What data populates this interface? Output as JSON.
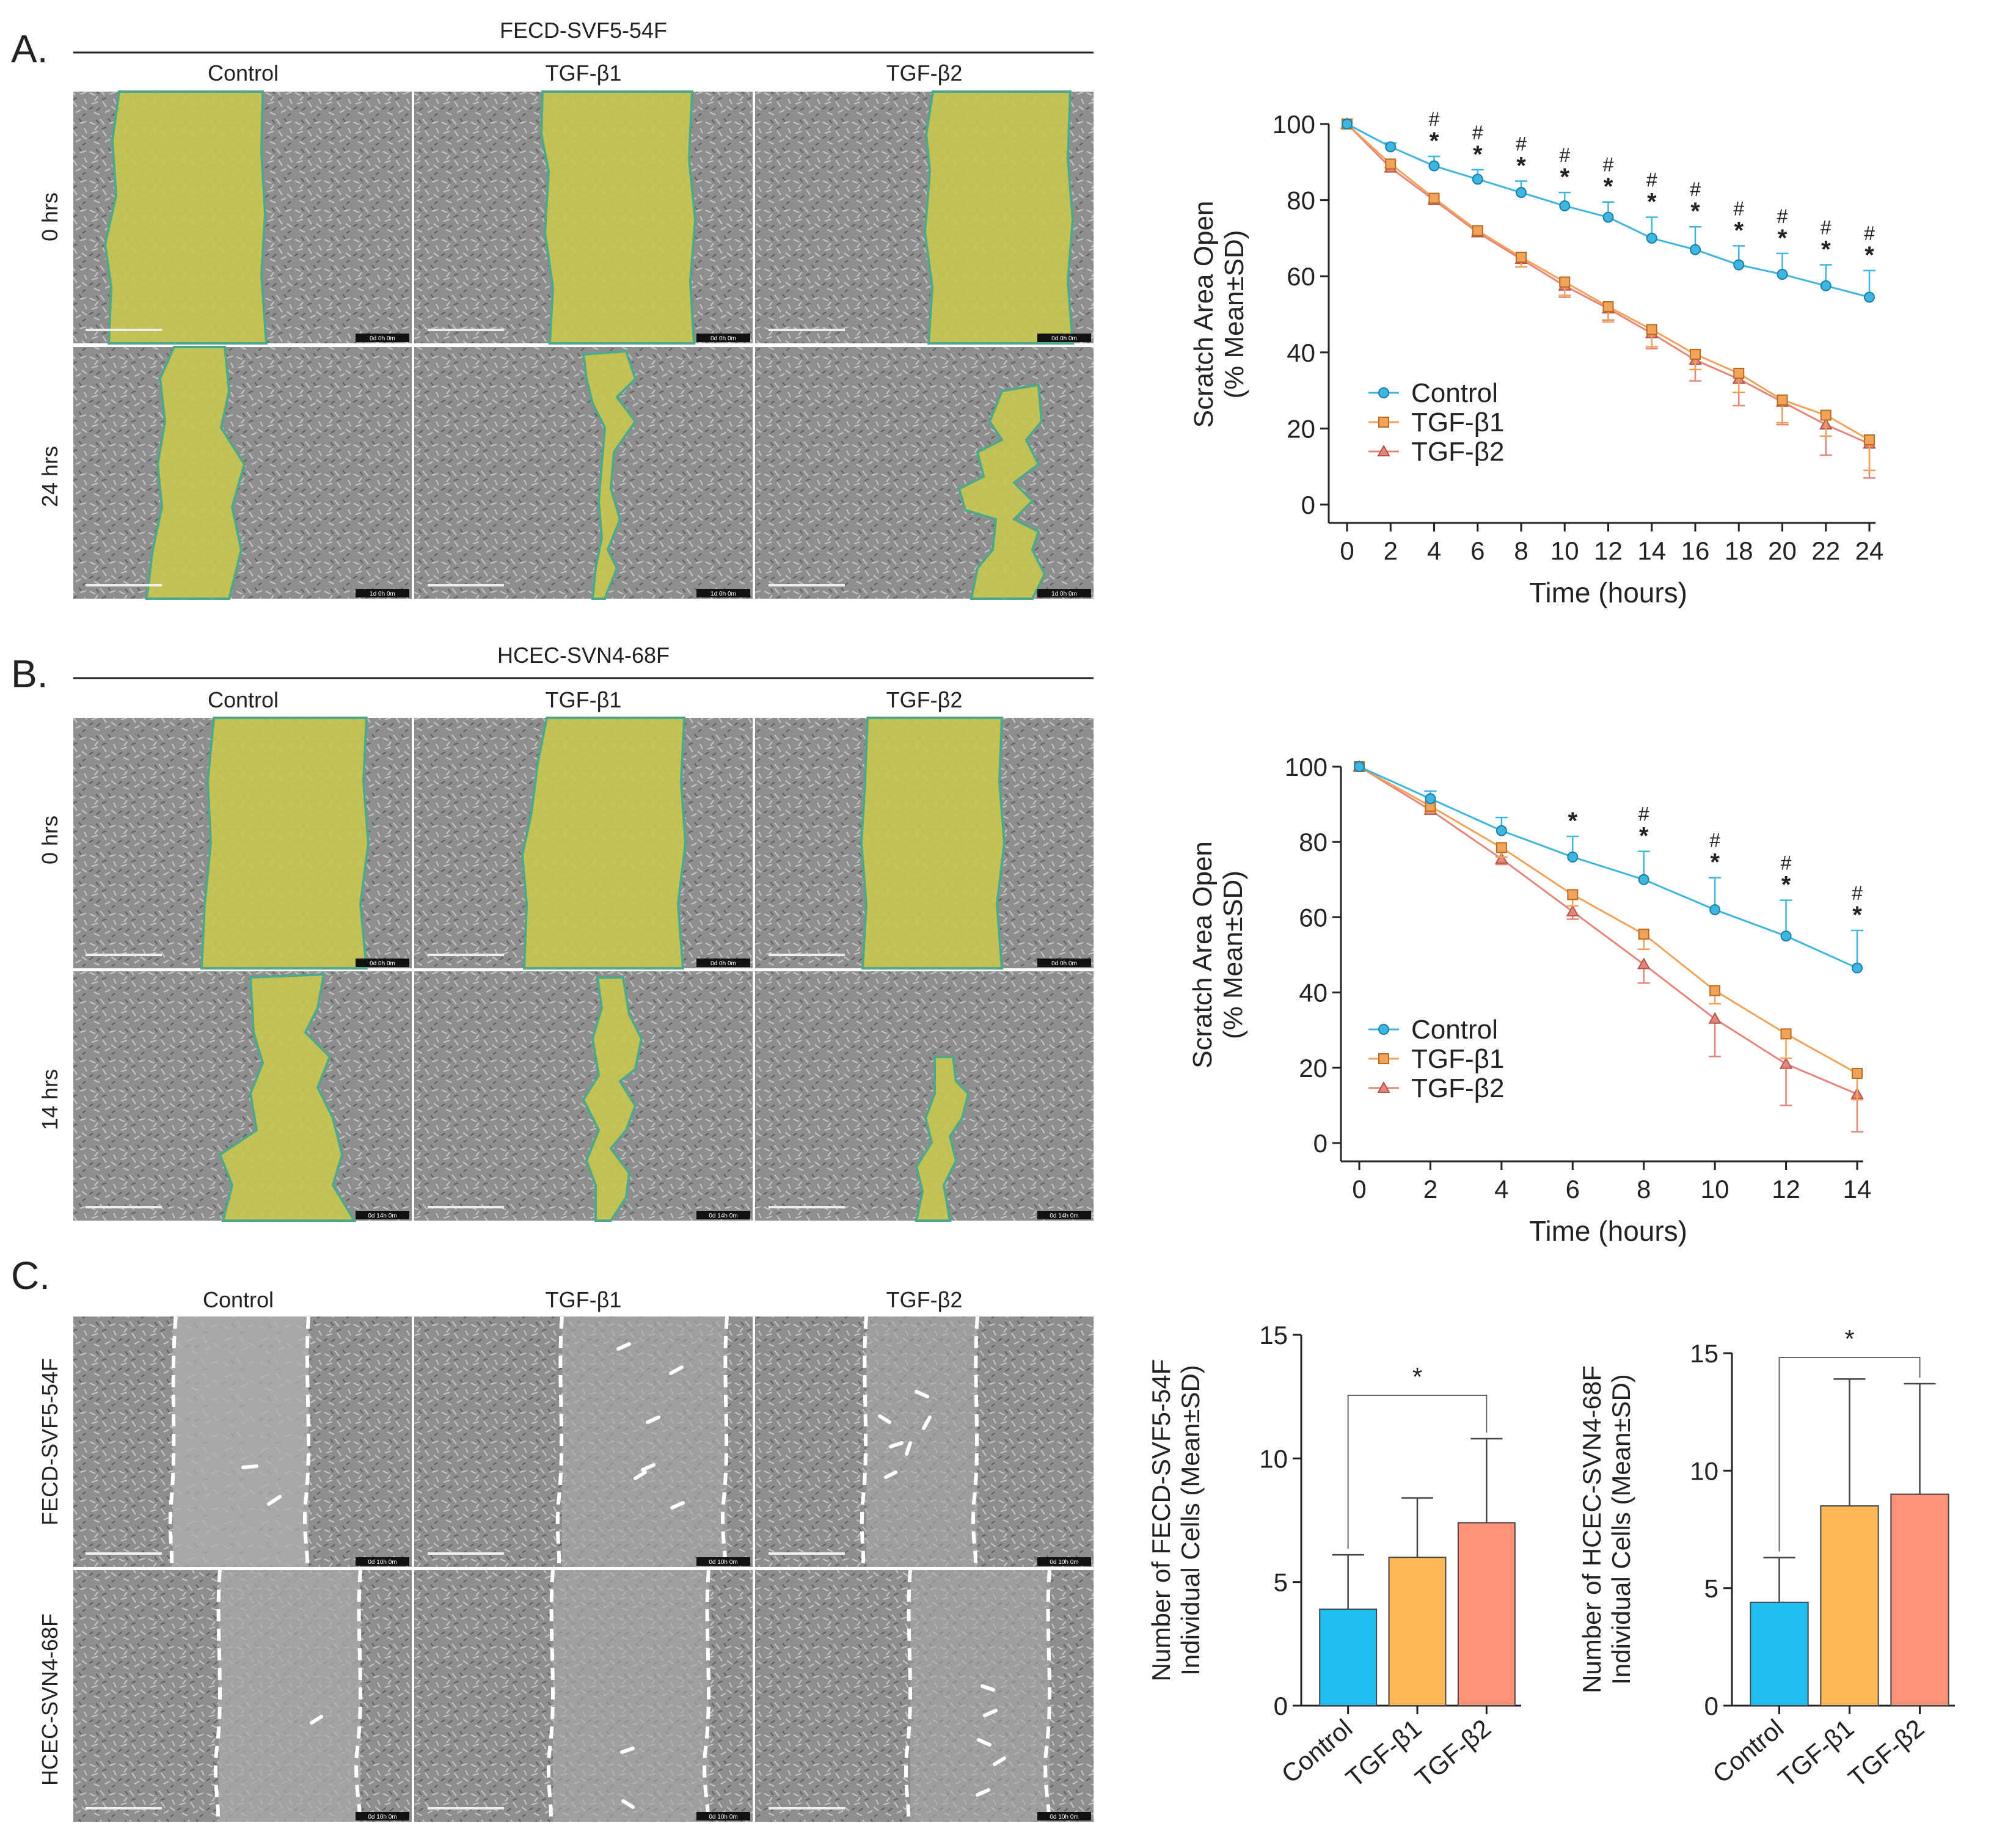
{
  "panels": {
    "a": {
      "letter": "A.",
      "cell_line": "FECD-SVF5-54F",
      "columns": [
        "Control",
        "TGF-β1",
        "TGF-β2"
      ],
      "rows": [
        "0 hrs",
        "24 hrs"
      ],
      "stamps": [
        [
          "0d 0h 0m",
          "0d 0h 0m",
          "0d 0h 0m"
        ],
        [
          "1d 0h 0m",
          "1d 0h 0m",
          "1d 0h 0m"
        ]
      ]
    },
    "b": {
      "letter": "B.",
      "cell_line": "HCEC-SVN4-68F",
      "columns": [
        "Control",
        "TGF-β1",
        "TGF-β2"
      ],
      "rows": [
        "0 hrs",
        "14 hrs"
      ],
      "stamps": [
        [
          "0d 0h 0m",
          "0d 0h 0m",
          "0d 0h 0m"
        ],
        [
          "0d 14h 0m",
          "0d 14h 0m",
          "0d 14h 0m"
        ]
      ]
    },
    "c": {
      "letter": "C.",
      "columns": [
        "Control",
        "TGF-β1",
        "TGF-β2"
      ],
      "rows": [
        "FECD-SVF5-54F",
        "HCEC-SVN4-68F"
      ],
      "stamps": [
        [
          "0d 10h 0m",
          "0d 10h 0m",
          "0d 10h 0m"
        ],
        [
          "0d 10h 0m",
          "0d 10h 0m",
          "0d 10h 0m"
        ]
      ]
    }
  },
  "colors": {
    "control": "#3fb6df",
    "tgfb1": "#f2a35a",
    "tgfb2": "#e8857a",
    "bar_control": "#1fbff2",
    "bar_tgfb1": "#ffb857",
    "bar_tgfb2": "#ff9278",
    "scratch": "#c8c650",
    "micro_bg": "#8e8e8e"
  },
  "chart_data": [
    {
      "type": "line",
      "title": "",
      "xlabel": "Time (hours)",
      "ylabel": [
        "Scratch Area Open",
        "(% Mean±SD)"
      ],
      "x": [
        0,
        2,
        4,
        6,
        8,
        10,
        12,
        14,
        16,
        18,
        20,
        22,
        24
      ],
      "xlim": [
        0,
        24
      ],
      "ylim": [
        0,
        100
      ],
      "yticks": [
        0,
        20,
        40,
        60,
        80,
        100
      ],
      "legend": "bottom-left",
      "series": [
        {
          "name": "Control",
          "values": [
            100,
            94,
            89,
            85.5,
            82,
            78.5,
            75.5,
            70,
            67,
            63,
            60.5,
            57.5,
            54.5
          ],
          "sd": [
            0,
            1,
            2.5,
            2.5,
            3,
            3.5,
            4,
            5.5,
            6,
            5,
            5.5,
            5.5,
            7
          ]
        },
        {
          "name": "TGF-β1",
          "values": [
            100,
            89.5,
            80.5,
            72,
            65,
            58.5,
            52,
            46,
            39.5,
            34.5,
            27.5,
            23.5,
            17
          ],
          "sd": [
            0,
            1,
            1,
            1,
            2.5,
            3.5,
            4,
            4.5,
            4,
            5,
            6,
            5.5,
            8
          ]
        },
        {
          "name": "TGF-β2",
          "values": [
            100,
            88.5,
            80,
            71.5,
            64.5,
            57.5,
            51.5,
            45,
            38,
            33,
            27,
            21,
            16
          ],
          "sd": [
            0,
            1,
            1,
            1,
            2,
            3,
            3,
            4,
            5.5,
            7,
            6,
            8,
            9
          ]
        }
      ],
      "annotations": {
        "star_x": [
          4,
          6,
          8,
          10,
          12,
          14,
          16,
          18,
          20,
          22,
          24
        ],
        "hash_x": [
          4,
          6,
          8,
          10,
          12,
          14,
          16,
          18,
          20,
          22,
          24
        ],
        "star_label": "*",
        "hash_label": "#"
      }
    },
    {
      "type": "line",
      "title": "",
      "xlabel": "Time (hours)",
      "ylabel": [
        "Scratch Area Open",
        "(% Mean±SD)"
      ],
      "x": [
        0,
        2,
        4,
        6,
        8,
        10,
        12,
        14
      ],
      "xlim": [
        0,
        14
      ],
      "ylim": [
        0,
        100
      ],
      "yticks": [
        0,
        20,
        40,
        60,
        80,
        100
      ],
      "legend": "bottom-left",
      "series": [
        {
          "name": "Control",
          "values": [
            100,
            91.5,
            83,
            76,
            70,
            62,
            55,
            46.5
          ],
          "sd": [
            0,
            2,
            3.5,
            5.5,
            7.5,
            8.5,
            9.5,
            10
          ]
        },
        {
          "name": "TGF-β1",
          "values": [
            100,
            89.5,
            78.5,
            66,
            55.5,
            40.5,
            29,
            18.5
          ],
          "sd": [
            0,
            1.5,
            2.5,
            3,
            4,
            3.5,
            6.5,
            7
          ]
        },
        {
          "name": "TGF-β2",
          "values": [
            100,
            88.5,
            75.5,
            61.5,
            47.5,
            33,
            21,
            13
          ],
          "sd": [
            0,
            1,
            1.5,
            2,
            5,
            10,
            11,
            10
          ]
        }
      ],
      "annotations": {
        "star_x": [
          6,
          8,
          10,
          12,
          14
        ],
        "hash_x": [
          8,
          10,
          12,
          14
        ],
        "star_label": "*",
        "hash_label": "#"
      }
    },
    {
      "type": "bar",
      "title": "",
      "categories": [
        "Control",
        "TGF-β1",
        "TGF-β2"
      ],
      "ylabel": [
        "Number of FECD-SVF5-54F",
        "Individual Cells (Mean±SD)"
      ],
      "ylim": [
        0,
        15
      ],
      "yticks": [
        0,
        5,
        10,
        15
      ],
      "values": [
        3.9,
        6.0,
        7.4
      ],
      "sd": [
        2.2,
        2.4,
        3.4
      ],
      "significance": {
        "from": "Control",
        "to": "TGF-β2",
        "label": "*"
      }
    },
    {
      "type": "bar",
      "title": "",
      "categories": [
        "Control",
        "TGF-β1",
        "TGF-β2"
      ],
      "ylabel": [
        "Number of HCEC-SVN4-68F",
        "Individual Cells (Mean±SD)"
      ],
      "ylim": [
        0,
        15
      ],
      "yticks": [
        0,
        5,
        10,
        15
      ],
      "values": [
        4.4,
        8.5,
        9.0
      ],
      "sd": [
        1.9,
        5.4,
        4.7
      ],
      "significance": {
        "from": "Control",
        "to": "TGF-β2",
        "label": "*"
      }
    }
  ]
}
